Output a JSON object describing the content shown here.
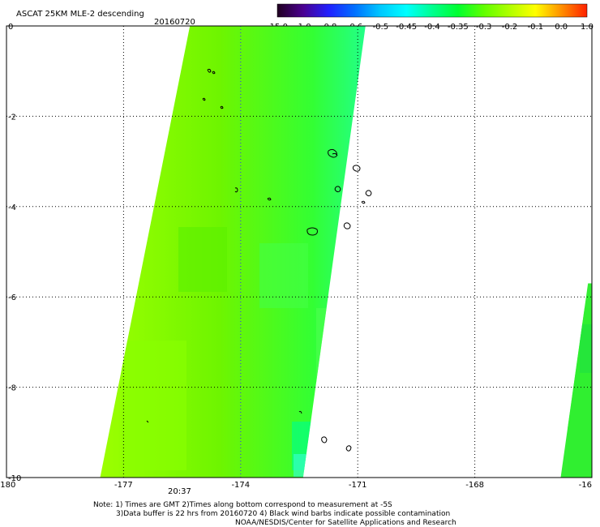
{
  "header": {
    "title": "ASCAT 25KM MLE-2 descending",
    "date": "20160720"
  },
  "colorbar": {
    "tick_labels": [
      "-15.0",
      "-1.0",
      "-0.8",
      "-0.6",
      "-0.5",
      "-0.45",
      "-0.4",
      "-0.35",
      "-0.3",
      "-0.2",
      "-0.1",
      "0.0",
      "1.0"
    ],
    "colors": [
      "#200020",
      "#4a0090",
      "#2020ff",
      "#0070ff",
      "#00c8ff",
      "#00ffff",
      "#00ff90",
      "#00ff30",
      "#60ff00",
      "#b0ff00",
      "#ffff00",
      "#ff9000",
      "#ff2000"
    ]
  },
  "axes": {
    "x_tick_labels": [
      "-180",
      "-177",
      "-174",
      "-171",
      "-168",
      "-16"
    ],
    "y_tick_labels": [
      "0",
      "-2",
      "-4",
      "-6",
      "-8",
      "-10"
    ],
    "time_label": "20:37",
    "time_label_color": "#cc0000"
  },
  "notes": [
    "Note: 1) Times are GMT 2)Times along bottom correspond to measurement at -5S",
    "3)Data buffer is 22 hrs from 20160720 4) Black wind barbs indicate possible contamination",
    "NOAA/NESDIS/Center for Satellite Applications and Research"
  ],
  "map_data": {
    "projection": "lat-lon",
    "lon_range": [
      -180,
      -165
    ],
    "lat_range": [
      -10,
      0
    ],
    "swaths": [
      {
        "name": "main",
        "corners_lonlat": [
          [
            -175.3,
            0
          ],
          [
            -170.8,
            0
          ],
          [
            -172.4,
            -10
          ],
          [
            -177.6,
            -10
          ]
        ],
        "dominant_color": "#7cfc00"
      },
      {
        "name": "edge",
        "corners_lonlat": [
          [
            -165.1,
            -5.7
          ],
          [
            -165.0,
            -5.7
          ],
          [
            -165.0,
            -10
          ],
          [
            -165.8,
            -10
          ]
        ],
        "dominant_color": "#33ee33"
      }
    ]
  }
}
